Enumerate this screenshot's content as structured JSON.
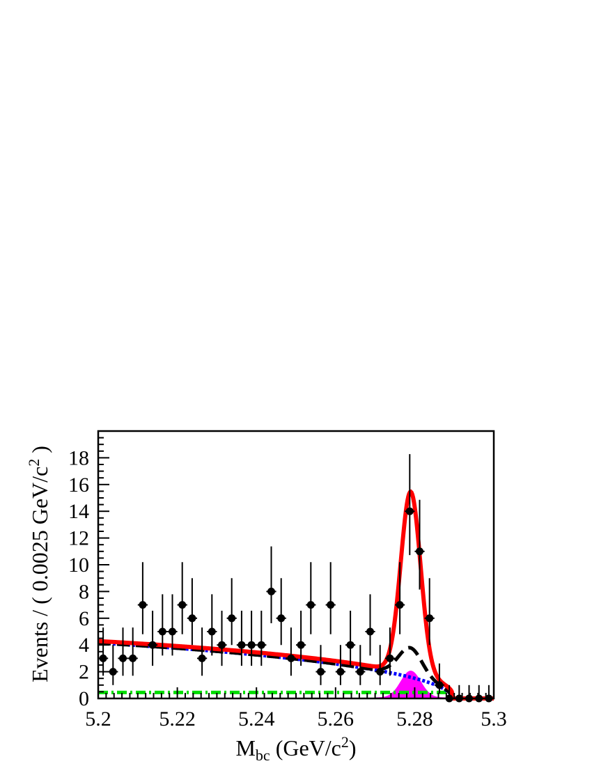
{
  "chart_data": {
    "type": "scatter",
    "title": "",
    "xlabel": "M",
    "xlabel_sub": "bc",
    "xlabel_unit": " (GeV/c",
    "xlabel_unit_sup": "2",
    "xlabel_unit_close": ")",
    "ylabel": "Events / ( 0.0025 GeV/c",
    "ylabel_sup": "2",
    "ylabel_close": " )",
    "xlim": [
      5.2,
      5.3
    ],
    "ylim": [
      0,
      20
    ],
    "x_ticks": [
      "5.2",
      "5.22",
      "5.24",
      "5.26",
      "5.28",
      "5.3"
    ],
    "x_tick_values": [
      5.2,
      5.22,
      5.24,
      5.26,
      5.28,
      5.3
    ],
    "y_ticks": [
      "0",
      "2",
      "4",
      "6",
      "8",
      "10",
      "12",
      "14",
      "16",
      "18"
    ],
    "y_tick_values": [
      0,
      2,
      4,
      6,
      8,
      10,
      12,
      14,
      16,
      18
    ],
    "legend": "none",
    "grid": false,
    "data_points": {
      "x": [
        5.20125,
        5.20375,
        5.20625,
        5.20875,
        5.21125,
        5.21375,
        5.21625,
        5.21875,
        5.22125,
        5.22375,
        5.22625,
        5.22875,
        5.23125,
        5.23375,
        5.23625,
        5.23875,
        5.24125,
        5.24375,
        5.24625,
        5.24875,
        5.25125,
        5.25375,
        5.25625,
        5.25875,
        5.26125,
        5.26375,
        5.26625,
        5.26875,
        5.27125,
        5.27375,
        5.27625,
        5.27875,
        5.28125,
        5.28375,
        5.28625,
        5.28875,
        5.29125,
        5.29375,
        5.29625,
        5.29875
      ],
      "y": [
        3,
        2,
        3,
        3,
        7,
        4,
        5,
        5,
        7,
        6,
        3,
        5,
        4,
        6,
        4,
        4,
        4,
        8,
        6,
        3,
        4,
        7,
        2,
        7,
        2,
        4,
        2,
        5,
        2,
        3,
        7,
        14,
        11,
        6,
        1,
        0,
        0,
        0,
        0,
        0
      ]
    },
    "series": [
      {
        "name": "",
        "style": "solid",
        "color": "#ff0000"
      },
      {
        "name": "",
        "style": "dashed",
        "color": "#000000"
      },
      {
        "name": "",
        "style": "dotted",
        "color": "#0000ff"
      },
      {
        "name": "",
        "style": "dash-dot",
        "color": "#00dd00"
      },
      {
        "name": "",
        "style": "filled",
        "color": "#ff00ff"
      }
    ]
  }
}
